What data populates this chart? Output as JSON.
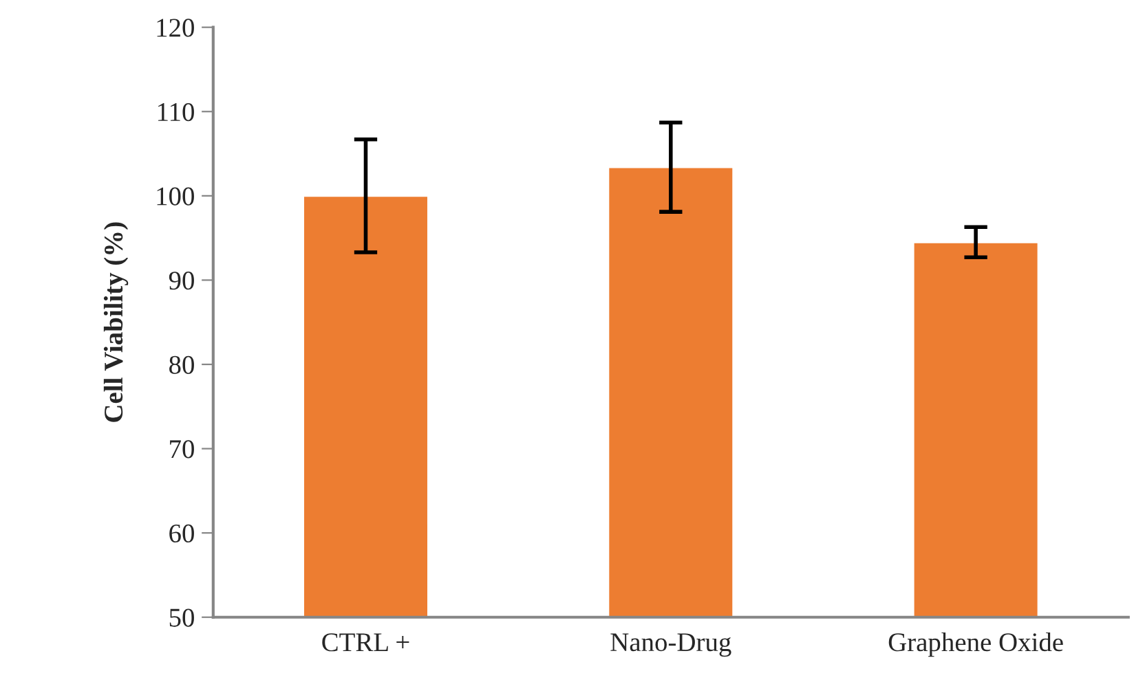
{
  "chart_data": {
    "type": "bar",
    "ylabel": "Cell Viability (%)",
    "categories": [
      "CTRL +",
      "Nano-Drug",
      "Graphene Oxide"
    ],
    "values": [
      100,
      103.4,
      94.5
    ],
    "errors": [
      6.7,
      5.3,
      1.8
    ],
    "color": "#ed7d31",
    "ylim": [
      50,
      120
    ],
    "yticks": [
      50,
      60,
      70,
      80,
      90,
      100,
      110,
      120
    ],
    "grid": false,
    "legend": false
  }
}
